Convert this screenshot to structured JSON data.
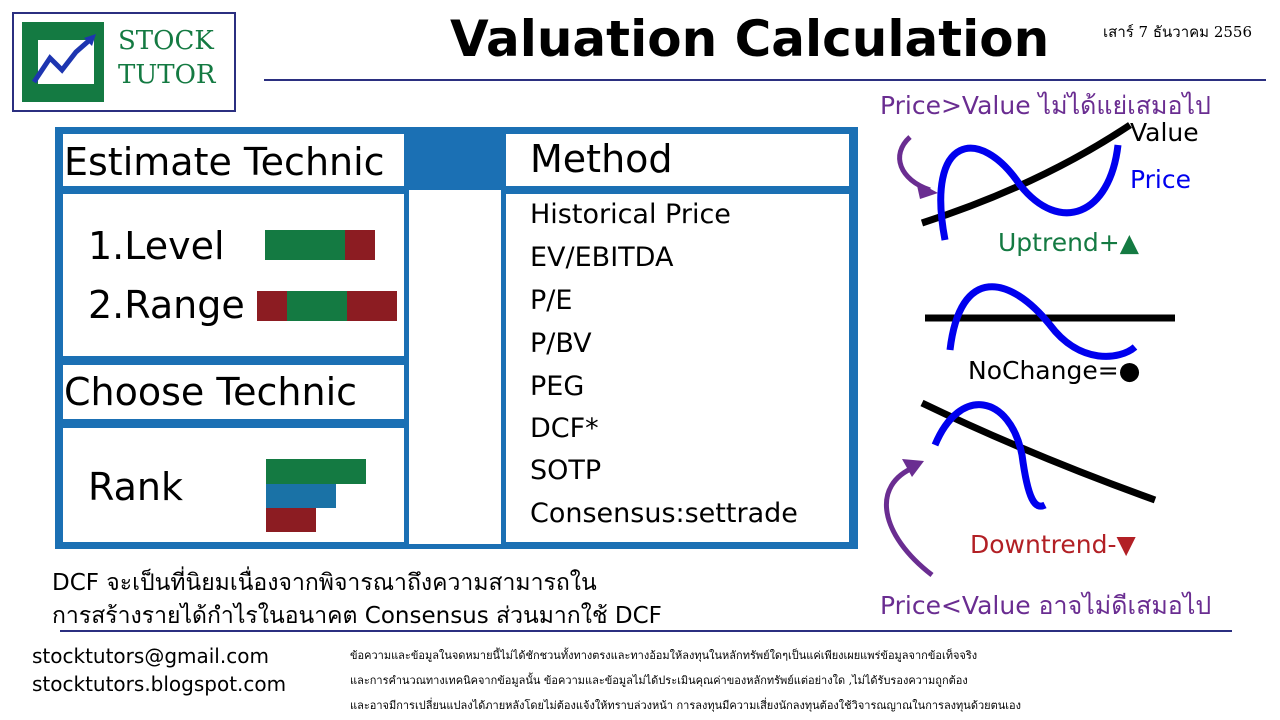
{
  "header": {
    "logo_line1": "STOCK",
    "logo_line2": "TUTOR",
    "title": "Valuation Calculation",
    "date": "เสาร์ 7 ธันวาคม 2556"
  },
  "estimate": {
    "heading": "Estimate Technic",
    "items": [
      "1.Level",
      "2.Range"
    ]
  },
  "choose": {
    "heading": "Choose Technic",
    "item": "Rank"
  },
  "method": {
    "heading": "Method",
    "items": [
      "Historical Price",
      "EV/EBITDA",
      "P/E",
      "P/BV",
      "PEG",
      "DCF*",
      "SOTP",
      "Consensus:settrade"
    ]
  },
  "note": {
    "lines": [
      "DCF จะเป็นที่นิยมเนื่องจากพิจารณาถึงความสามารถใน",
      "การสร้างรายได้กำไรในอนาคต Consensus ส่วนมากใช้ DCF"
    ]
  },
  "trends": {
    "top_caption": "Price>Value ไม่ได้แย่เสมอไป",
    "value_label": "Value",
    "price_label": "Price",
    "uptrend": "Uptrend+▲",
    "nochange": "NoChange=●",
    "downtrend": "Downtrend-▼",
    "bottom_caption": "Price<Value อาจไม่ดีเสมอไป"
  },
  "footer": {
    "contacts": [
      "stocktutors@gmail.com",
      "stocktutors.blogspot.com"
    ],
    "disclaimer": [
      "ข้อความและข้อมูลในจดหมายนี้ไม่ได้ชักชวนทั้งทางตรงและทางอ้อมให้ลงทุนในหลักทรัพย์ใดๆเป็นแค่เพียงเผยแพร่ข้อมูลจากข้อเท็จจริง",
      "และการคำนวณทางเทคนิคจากข้อมูลนั้น ข้อความและข้อมูลไม่ได้ประเมินคุณค่าของหลักทรัพย์แต่อย่างใด ,ไม่ได้รับรองความถูกต้อง",
      "และอาจมีการเปลี่ยนแปลงได้ภายหลังโดยไม่ต้องแจ้งให้ทราบล่วงหน้า การลงทุนมีความเสี่ยงนักลงทุนต้องใช้วิจารณญาณในการลงทุนด้วยตนเอง"
    ]
  }
}
